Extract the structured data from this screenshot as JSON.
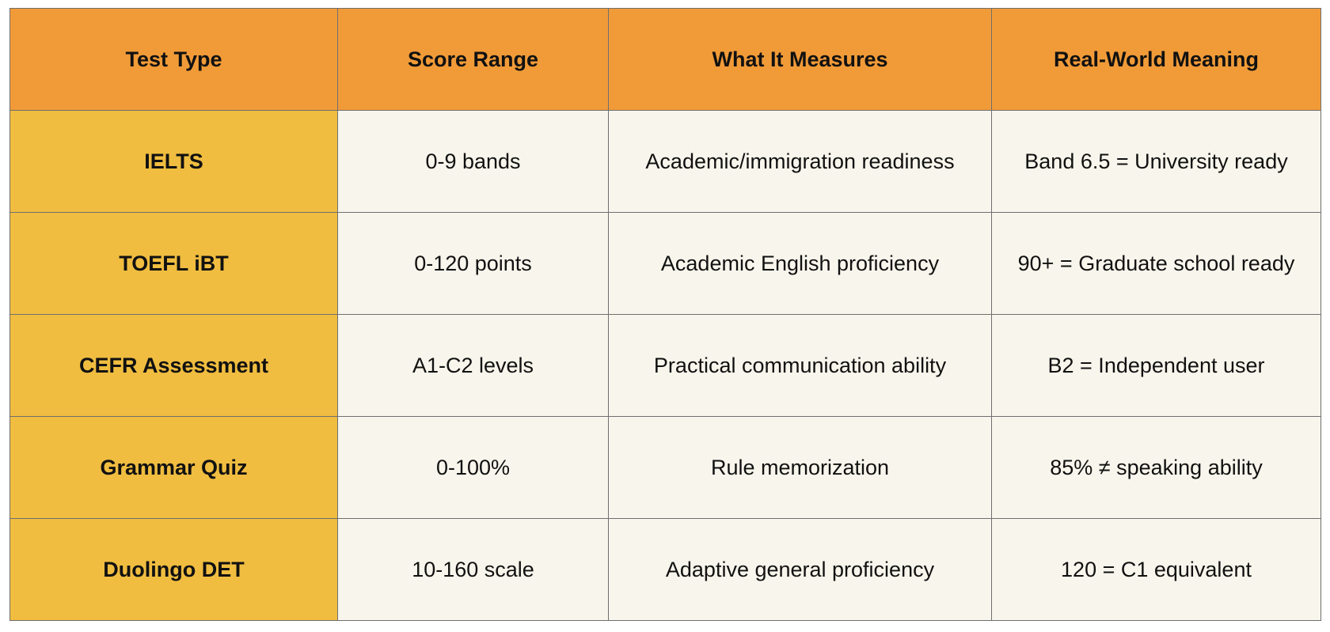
{
  "headers": [
    "Test Type",
    "Score Range",
    "What It Measures",
    "Real-World Meaning"
  ],
  "rows": [
    {
      "test": "IELTS",
      "range": "0-9 bands",
      "measures": "Academic/immigration readiness",
      "meaning": "Band 6.5 = University ready"
    },
    {
      "test": "TOEFL iBT",
      "range": "0-120 points",
      "measures": "Academic English proficiency",
      "meaning": "90+ = Graduate school ready"
    },
    {
      "test": "CEFR Assessment",
      "range": "A1-C2 levels",
      "measures": "Practical communication ability",
      "meaning": "B2 = Independent user"
    },
    {
      "test": "Grammar Quiz",
      "range": "0-100%",
      "measures": "Rule memorization",
      "meaning": "85% ≠ speaking ability"
    },
    {
      "test": "Duolingo DET",
      "range": "10-160 scale",
      "measures": "Adaptive general proficiency",
      "meaning": "120 = C1 equivalent"
    }
  ],
  "colors": {
    "header_bg": "#f19b38",
    "first_col_bg": "#f0bd40",
    "cell_bg": "#f8f6ec",
    "border": "#6f6f6f"
  }
}
